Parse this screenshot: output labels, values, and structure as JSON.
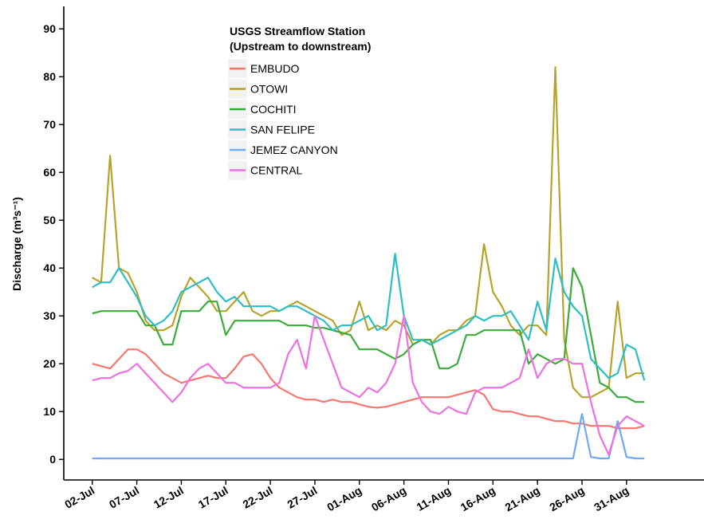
{
  "chart_data": {
    "type": "line",
    "ylabel": "Discharge (m³s⁻¹)",
    "legend_title": [
      "USGS Streamflow Station",
      "(Upstream to downstream)"
    ],
    "legend_position": "top-center",
    "grid": false,
    "x": [
      "02-Jul",
      "03-Jul",
      "04-Jul",
      "05-Jul",
      "06-Jul",
      "07-Jul",
      "08-Jul",
      "09-Jul",
      "10-Jul",
      "11-Jul",
      "12-Jul",
      "13-Jul",
      "14-Jul",
      "15-Jul",
      "16-Jul",
      "17-Jul",
      "18-Jul",
      "19-Jul",
      "20-Jul",
      "21-Jul",
      "22-Jul",
      "23-Jul",
      "24-Jul",
      "25-Jul",
      "26-Jul",
      "27-Jul",
      "28-Jul",
      "29-Jul",
      "30-Jul",
      "31-Jul",
      "01-Aug",
      "02-Aug",
      "03-Aug",
      "04-Aug",
      "05-Aug",
      "06-Aug",
      "07-Aug",
      "08-Aug",
      "09-Aug",
      "10-Aug",
      "11-Aug",
      "12-Aug",
      "13-Aug",
      "14-Aug",
      "15-Aug",
      "16-Aug",
      "17-Aug",
      "18-Aug",
      "19-Aug",
      "20-Aug",
      "21-Aug",
      "22-Aug",
      "23-Aug",
      "24-Aug",
      "25-Aug",
      "26-Aug",
      "27-Aug",
      "28-Aug",
      "29-Aug",
      "30-Aug",
      "31-Aug",
      "01-Sep",
      "02-Sep"
    ],
    "xticks": [
      "02-Jul",
      "07-Jul",
      "12-Jul",
      "17-Jul",
      "22-Jul",
      "27-Jul",
      "01-Aug",
      "06-Aug",
      "11-Aug",
      "16-Aug",
      "21-Aug",
      "26-Aug",
      "31-Aug"
    ],
    "ylim": [
      -4.3,
      94.7
    ],
    "yticks": [
      0,
      10,
      20,
      30,
      40,
      50,
      60,
      70,
      80,
      90
    ],
    "series": [
      {
        "name": "EMBUDO",
        "color": "#f8766d",
        "values": [
          20,
          19.5,
          19,
          21,
          23,
          23,
          22,
          20,
          18,
          17,
          16,
          16.5,
          17,
          17.5,
          17,
          17,
          19,
          21.5,
          22,
          20,
          17,
          15,
          14,
          13,
          12.5,
          12.5,
          12,
          12.5,
          12,
          12,
          11.5,
          11,
          10.8,
          11,
          11.5,
          12,
          12.5,
          13,
          13,
          13,
          13,
          13.5,
          14,
          14.5,
          13.5,
          10.5,
          10,
          10,
          9.5,
          9,
          9,
          8.5,
          8,
          8,
          7.5,
          7.5,
          7,
          7,
          7,
          6.5,
          6.5,
          6.5,
          7
        ]
      },
      {
        "name": "OTOWI",
        "color": "#b8a22a",
        "values": [
          38,
          37,
          63.5,
          40,
          39,
          35,
          29,
          27,
          27,
          28,
          34,
          38,
          36,
          34,
          31,
          31,
          33,
          35,
          31,
          30,
          31,
          31,
          32,
          33,
          32,
          31,
          30,
          29,
          26,
          27,
          33,
          27,
          28,
          27,
          29,
          28,
          24,
          25,
          24,
          26,
          27,
          27,
          29,
          30,
          45,
          35,
          32,
          28,
          26,
          28,
          28,
          26,
          82,
          25,
          15,
          13,
          13,
          14,
          15,
          33,
          17,
          18,
          18
        ]
      },
      {
        "name": "COCHITI",
        "color": "#3aab3a",
        "values": [
          30.5,
          31,
          31,
          31,
          31,
          31,
          28,
          28,
          24,
          24,
          31,
          31,
          31,
          33,
          33,
          26,
          29,
          29,
          29,
          29,
          29,
          29,
          28,
          28,
          28,
          27.5,
          27.5,
          27,
          26.5,
          26,
          23,
          23,
          23,
          22,
          21,
          22,
          24,
          25,
          25,
          19,
          19,
          20,
          26,
          26,
          27,
          27,
          27,
          27,
          27,
          20,
          22,
          21,
          20,
          21,
          40,
          36,
          26,
          16,
          15,
          13,
          13,
          12,
          12
        ]
      },
      {
        "name": "SAN FELIPE",
        "color": "#2bbfc5",
        "values": [
          36,
          37,
          37,
          40,
          37,
          34,
          30,
          28,
          29,
          31,
          35,
          36,
          37,
          38,
          35,
          33,
          34,
          32,
          32,
          32,
          32,
          31,
          32,
          32,
          31,
          30,
          29,
          27,
          28,
          28,
          29,
          30,
          27,
          28,
          43,
          30,
          25,
          25,
          24,
          25,
          26,
          27,
          28,
          30,
          29,
          30,
          30,
          31,
          28,
          25,
          33,
          27,
          42,
          35,
          32,
          30,
          21,
          19,
          17,
          18,
          24,
          23,
          16.5
        ]
      },
      {
        "name": "JEMEZ CANYON",
        "color": "#6fa8f5",
        "values": [
          0.2,
          0.2,
          0.2,
          0.2,
          0.2,
          0.2,
          0.2,
          0.2,
          0.2,
          0.2,
          0.2,
          0.2,
          0.2,
          0.2,
          0.2,
          0.2,
          0.2,
          0.2,
          0.2,
          0.2,
          0.2,
          0.2,
          0.2,
          0.2,
          0.2,
          0.2,
          0.2,
          0.2,
          0.2,
          0.2,
          0.2,
          0.2,
          0.2,
          0.2,
          0.2,
          0.2,
          0.2,
          0.2,
          0.2,
          0.2,
          0.2,
          0.2,
          0.2,
          0.2,
          0.2,
          0.2,
          0.2,
          0.2,
          0.2,
          0.2,
          0.2,
          0.2,
          0.2,
          0.2,
          0.2,
          9.5,
          0.5,
          0.2,
          0.2,
          8,
          0.5,
          0.2,
          0.2
        ]
      },
      {
        "name": "CENTRAL",
        "color": "#ee6fe0",
        "values": [
          16.5,
          17,
          17,
          18,
          18.5,
          20,
          18,
          16,
          14,
          12,
          14,
          17,
          19,
          20,
          18,
          16,
          16,
          15,
          15,
          15,
          15,
          16,
          22,
          25,
          19,
          30,
          25,
          20,
          15,
          14,
          13,
          15,
          14,
          16,
          20,
          30,
          16,
          12,
          10,
          9.5,
          11,
          10,
          9.5,
          14,
          15,
          15,
          15,
          16,
          17,
          23,
          17,
          20,
          21,
          21,
          20,
          20,
          12,
          5,
          1,
          7,
          9,
          8,
          7
        ]
      }
    ]
  }
}
